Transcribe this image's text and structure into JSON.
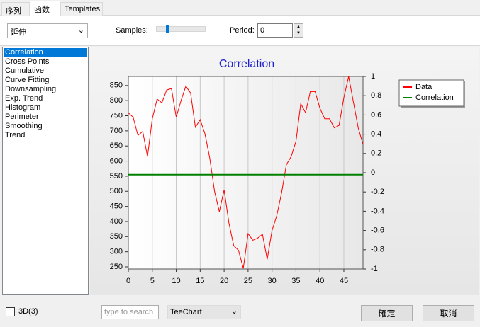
{
  "tabs": [
    "序列",
    "函数",
    "Templates"
  ],
  "toolbar": {
    "function_select": "延伸",
    "samples_label": "Samples:",
    "period_label": "Period:",
    "period_value": "0"
  },
  "function_list": [
    "Correlation",
    "Cross Points",
    "Cumulative",
    "Curve Fitting",
    "Downsampling",
    "Exp. Trend",
    "Histogram",
    "Perimeter",
    "Smoothing",
    "Trend"
  ],
  "chart": {
    "type": "line",
    "title": "Correlation",
    "x": [
      0,
      1,
      2,
      3,
      4,
      5,
      6,
      7,
      8,
      9,
      10,
      11,
      12,
      13,
      14,
      15,
      16,
      17,
      18,
      19,
      20,
      21,
      22,
      23,
      24,
      25,
      26,
      27,
      28,
      29,
      30,
      31,
      32,
      33,
      34,
      35,
      36,
      37,
      38,
      39,
      40,
      41,
      42,
      43,
      44,
      45,
      46,
      47,
      48,
      49
    ],
    "xlim": [
      0,
      49
    ],
    "xticks": [
      0,
      5,
      10,
      15,
      20,
      25,
      30,
      35,
      40,
      45
    ],
    "ylim": [
      243,
      880
    ],
    "yticks": [
      250,
      300,
      350,
      400,
      450,
      500,
      550,
      600,
      650,
      700,
      750,
      800,
      850
    ],
    "y2lim": [
      -1,
      1
    ],
    "y2ticks": [
      -1,
      -0.8,
      -0.6,
      -0.4,
      -0.2,
      0,
      0.2,
      0.4,
      0.6,
      0.8,
      1
    ],
    "grid": true,
    "legend": "right",
    "series": [
      {
        "name": "Data",
        "color": "#ff0000",
        "values": [
          760,
          745,
          685,
          698,
          615,
          740,
          805,
          793,
          835,
          840,
          745,
          800,
          848,
          825,
          712,
          737,
          690,
          610,
          500,
          433,
          505,
          395,
          320,
          305,
          245,
          360,
          338,
          345,
          358,
          275,
          370,
          420,
          495,
          588,
          615,
          665,
          790,
          760,
          830,
          830,
          775,
          740,
          740,
          710,
          718,
          810,
          880,
          795,
          710,
          655
        ]
      },
      {
        "name": "Correlation",
        "color": "#008000",
        "axis": "y2",
        "values": [
          -0.02,
          -0.02,
          -0.02,
          -0.02,
          -0.02,
          -0.02,
          -0.02,
          -0.02,
          -0.02,
          -0.02,
          -0.02,
          -0.02,
          -0.02,
          -0.02,
          -0.02,
          -0.02,
          -0.02,
          -0.02,
          -0.02,
          -0.02,
          -0.02,
          -0.02,
          -0.02,
          -0.02,
          -0.02,
          -0.02,
          -0.02,
          -0.02,
          -0.02,
          -0.02,
          -0.02,
          -0.02,
          -0.02,
          -0.02,
          -0.02,
          -0.02,
          -0.02,
          -0.02,
          -0.02,
          -0.02,
          -0.02,
          -0.02,
          -0.02,
          -0.02,
          -0.02,
          -0.02,
          -0.02,
          -0.02,
          -0.02,
          -0.02
        ]
      }
    ]
  },
  "footer": {
    "checkbox_label": "3D(3)",
    "search_placeholder": "type to search",
    "gallery_select": "TeeChart",
    "ok": "確定",
    "cancel": "取消"
  }
}
